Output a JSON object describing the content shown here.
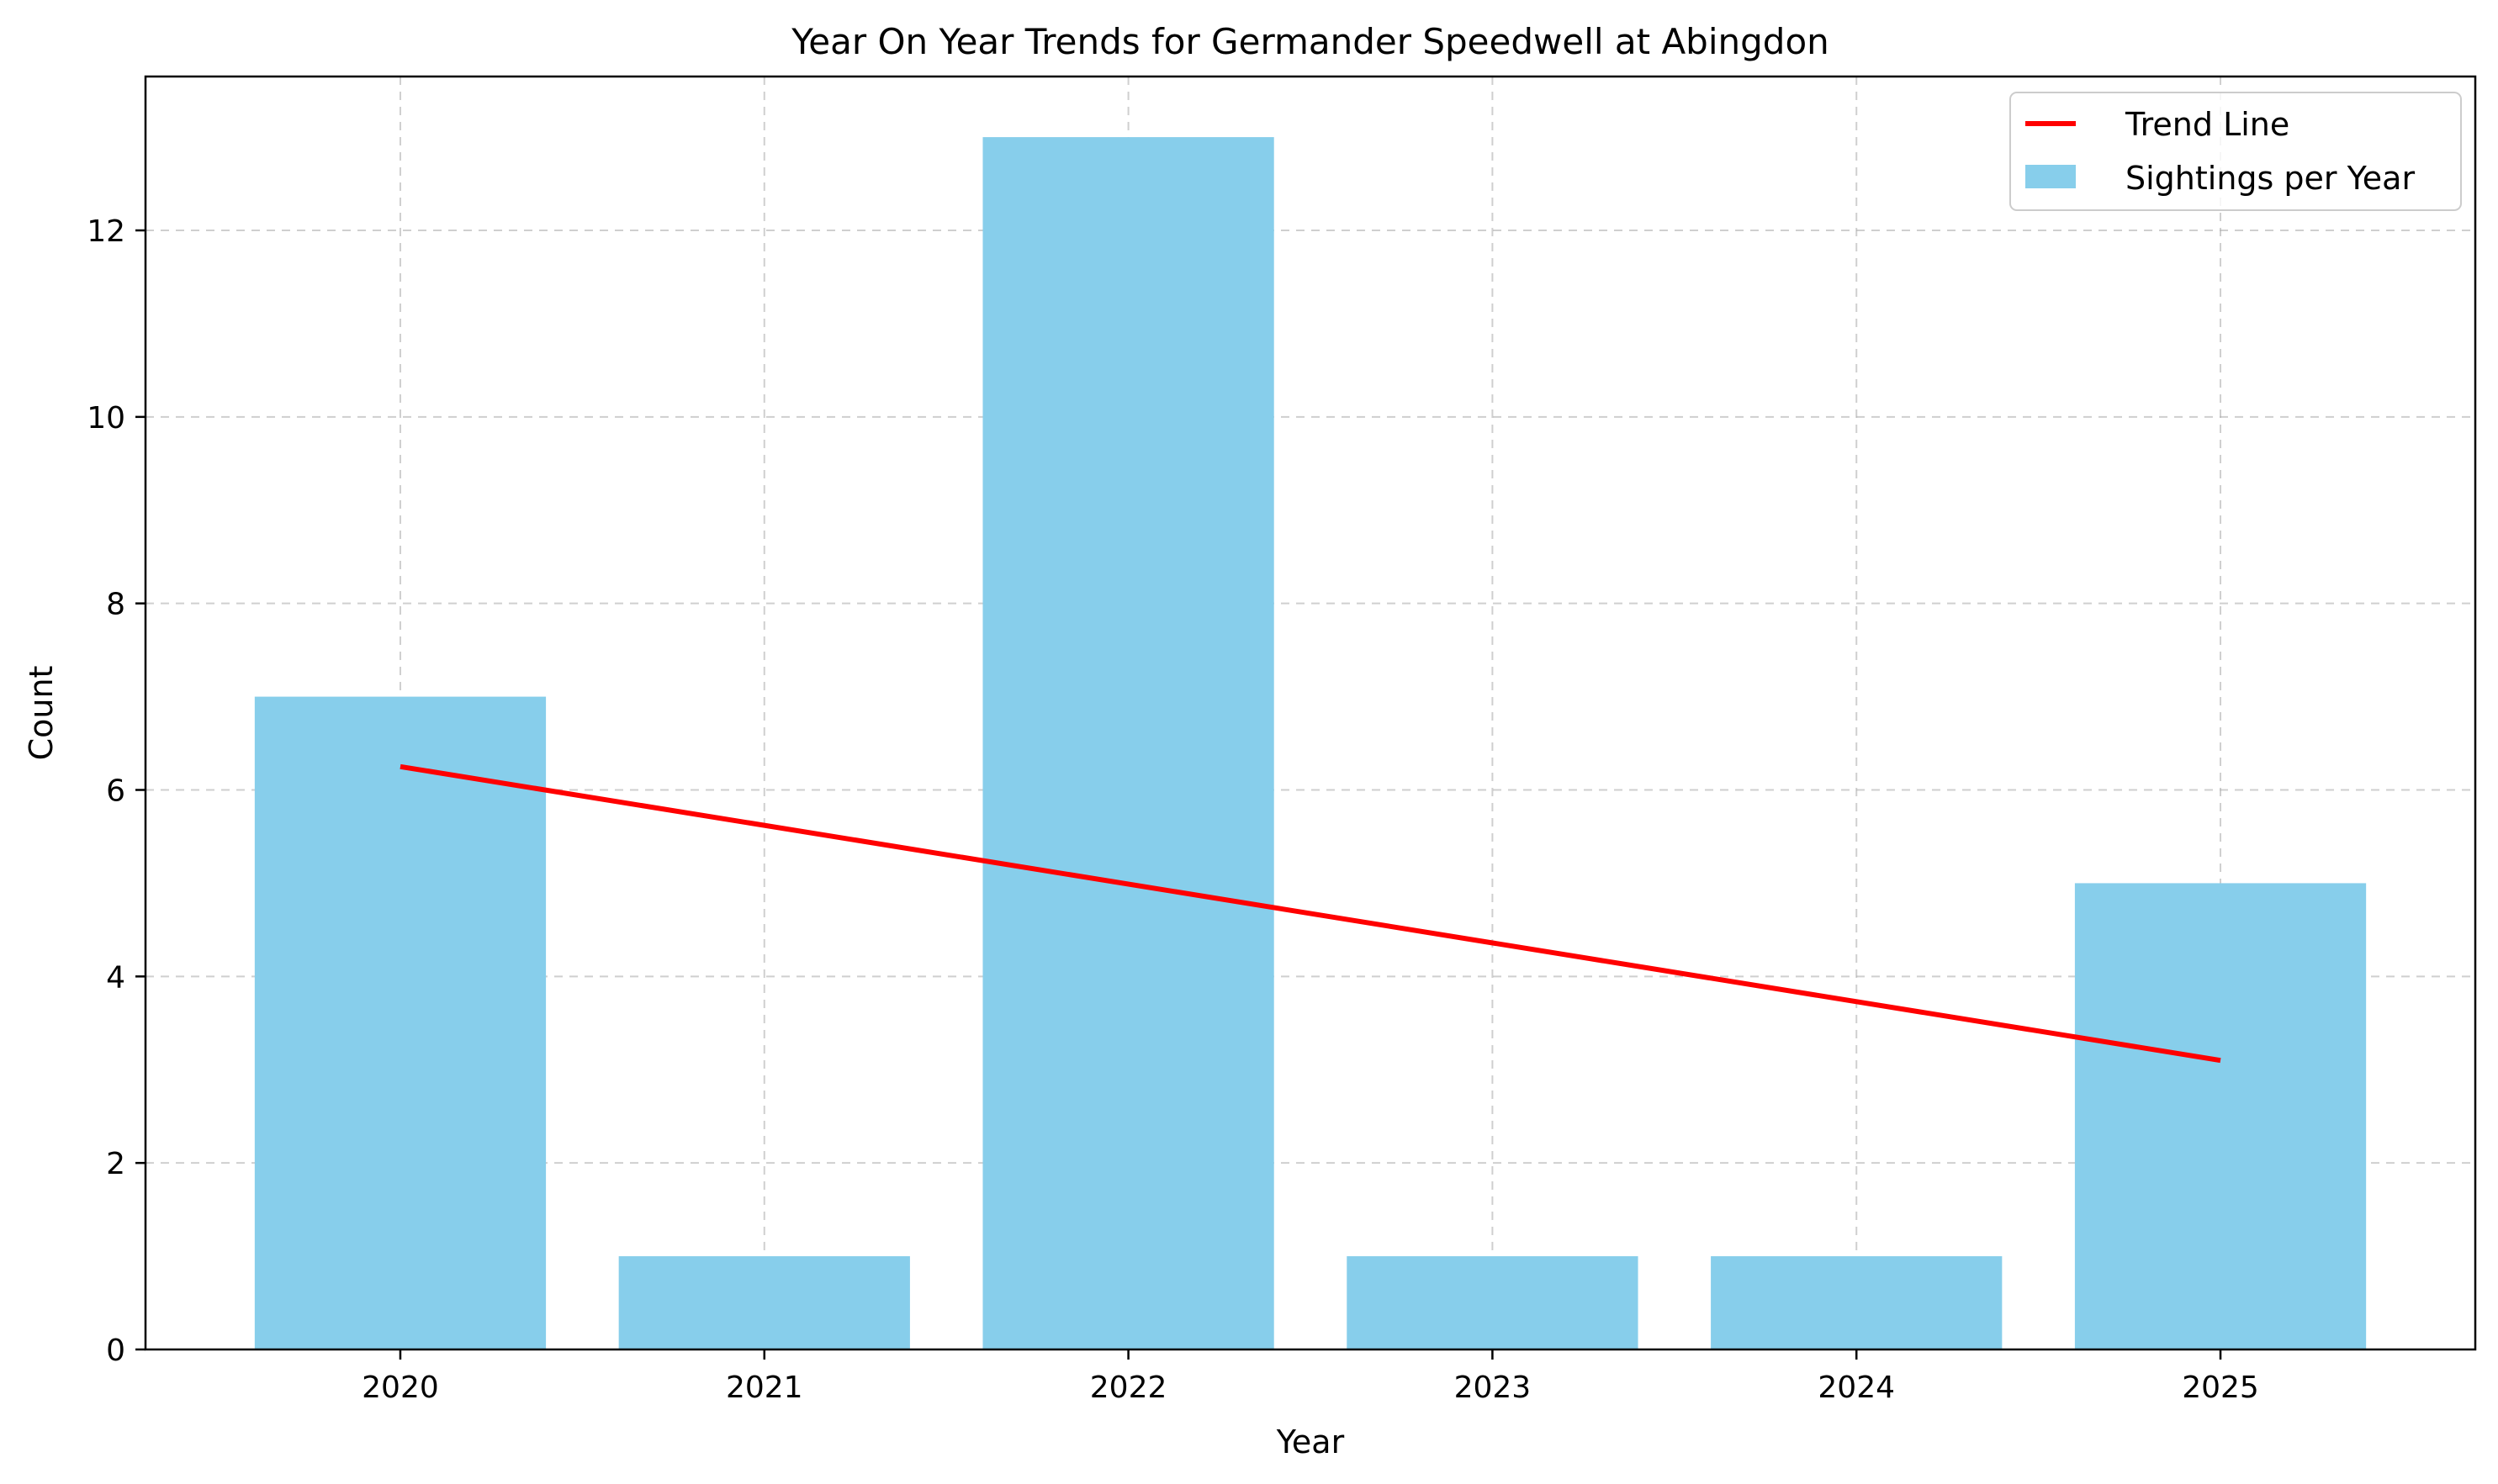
{
  "chart_data": {
    "type": "bar",
    "title": "Year On Year Trends for Germander Speedwell at Abingdon",
    "xlabel": "Year",
    "ylabel": "Count",
    "categories": [
      "2020",
      "2021",
      "2022",
      "2023",
      "2024",
      "2025"
    ],
    "series": [
      {
        "name": "Sightings per Year",
        "type": "bar",
        "color": "#87CEEB",
        "values": [
          7,
          1,
          13,
          1,
          1,
          5
        ]
      },
      {
        "name": "Trend Line",
        "type": "line",
        "color": "#FF0000",
        "start": 6.25,
        "end": 3.1
      }
    ],
    "yticks": [
      0,
      2,
      4,
      6,
      8,
      10,
      12
    ],
    "ylim": [
      0,
      13.65
    ],
    "grid": true,
    "legend_position": "top-right"
  }
}
